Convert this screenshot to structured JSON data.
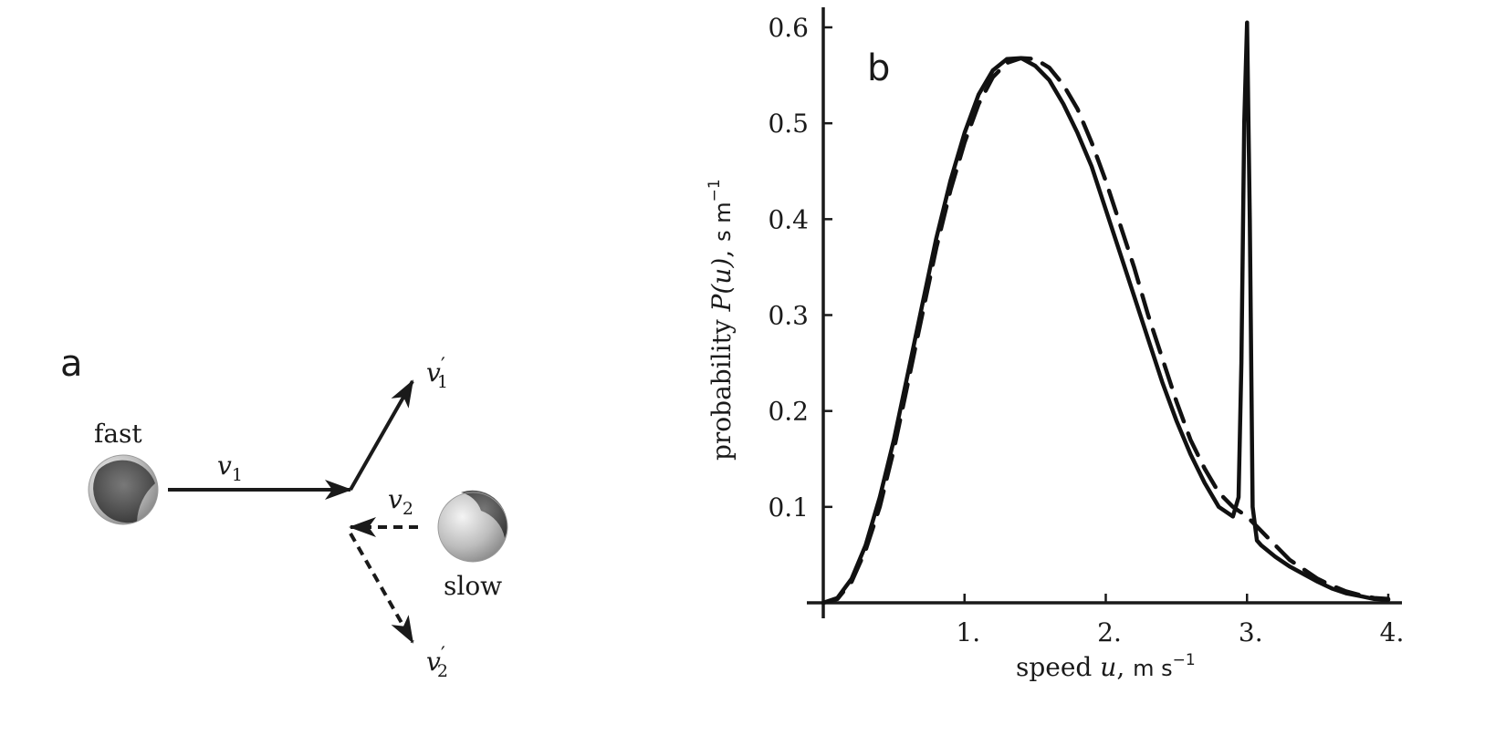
{
  "panel_a": {
    "label": "a",
    "fast_label": "fast",
    "slow_label": "slow",
    "v1_label": "v",
    "v1_sub": "1",
    "v2_label": "v",
    "v2_sub": "2",
    "v1p_label": "v",
    "v1p_sub": "1",
    "v1p_prime": "′",
    "v2p_label": "v",
    "v2p_sub": "2",
    "v2p_prime": "′"
  },
  "panel_b": {
    "label": "b"
  },
  "chart_data": {
    "type": "line",
    "xlabel_text": "speed ",
    "xlabel_var": "u",
    "xlabel_unit": "m s",
    "xlabel_exp": "−1",
    "ylabel_text": "probability ",
    "ylabel_var": "P(u)",
    "ylabel_unit": "s m",
    "ylabel_exp": "−1",
    "xlim": [
      0,
      4.05
    ],
    "ylim": [
      0,
      0.63
    ],
    "xticks": [
      1,
      2,
      3,
      4
    ],
    "xtick_labels": [
      "1.",
      "2.",
      "3.",
      "4."
    ],
    "yticks": [
      0.1,
      0.2,
      0.3,
      0.4,
      0.5,
      0.6
    ],
    "ytick_labels": [
      "0.1",
      "0.2",
      "0.3",
      "0.4",
      "0.5",
      "0.6"
    ],
    "series": [
      {
        "style": "solid",
        "x": [
          0,
          0.1,
          0.2,
          0.3,
          0.4,
          0.5,
          0.6,
          0.7,
          0.8,
          0.9,
          1.0,
          1.1,
          1.2,
          1.3,
          1.4,
          1.5,
          1.6,
          1.7,
          1.8,
          1.9,
          2.0,
          2.1,
          2.2,
          2.3,
          2.4,
          2.5,
          2.6,
          2.7,
          2.8,
          2.9,
          2.94,
          2.96,
          2.98,
          3.0,
          3.02,
          3.04,
          3.07,
          3.1,
          3.2,
          3.3,
          3.4,
          3.5,
          3.6,
          3.7,
          3.8,
          3.9,
          4.0
        ],
        "y": [
          0,
          0.005,
          0.025,
          0.06,
          0.11,
          0.17,
          0.24,
          0.31,
          0.38,
          0.44,
          0.49,
          0.53,
          0.555,
          0.567,
          0.568,
          0.56,
          0.545,
          0.52,
          0.49,
          0.455,
          0.41,
          0.365,
          0.32,
          0.275,
          0.23,
          0.19,
          0.155,
          0.125,
          0.1,
          0.09,
          0.11,
          0.25,
          0.5,
          0.605,
          0.4,
          0.1,
          0.065,
          0.06,
          0.048,
          0.038,
          0.03,
          0.022,
          0.015,
          0.01,
          0.007,
          0.004,
          0.003
        ]
      },
      {
        "style": "dashed",
        "x": [
          0,
          0.1,
          0.2,
          0.3,
          0.4,
          0.5,
          0.6,
          0.7,
          0.8,
          0.9,
          1.0,
          1.1,
          1.2,
          1.3,
          1.4,
          1.5,
          1.6,
          1.7,
          1.8,
          1.9,
          2.0,
          2.1,
          2.2,
          2.3,
          2.4,
          2.5,
          2.6,
          2.7,
          2.8,
          2.9,
          3.0,
          3.1,
          3.2,
          3.3,
          3.4,
          3.5,
          3.6,
          3.7,
          3.8,
          3.9,
          4.0
        ],
        "y": [
          0,
          0.004,
          0.022,
          0.055,
          0.1,
          0.16,
          0.23,
          0.3,
          0.37,
          0.43,
          0.48,
          0.52,
          0.548,
          0.563,
          0.568,
          0.567,
          0.558,
          0.54,
          0.515,
          0.48,
          0.44,
          0.395,
          0.35,
          0.3,
          0.255,
          0.21,
          0.17,
          0.14,
          0.115,
          0.1,
          0.09,
          0.075,
          0.06,
          0.045,
          0.035,
          0.025,
          0.018,
          0.012,
          0.008,
          0.005,
          0.004
        ]
      }
    ]
  }
}
